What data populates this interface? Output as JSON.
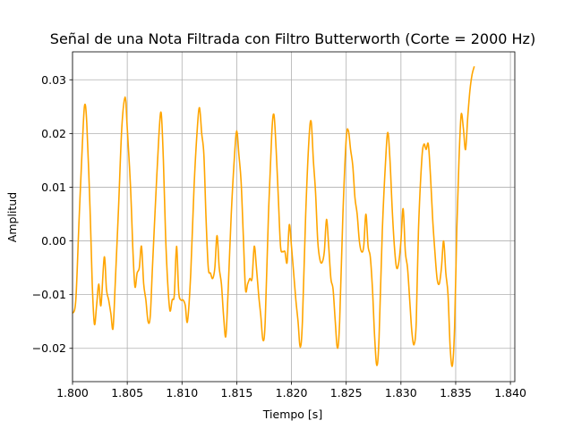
{
  "chart_data": {
    "type": "line",
    "title": "Señal de una Nota Filtrada con Filtro Butterworth (Corte = 2000 Hz)",
    "xlabel": "Tiempo [s]",
    "ylabel": "Amplitud",
    "xlim": [
      1.8,
      1.8404
    ],
    "ylim": [
      -0.0262,
      0.0352
    ],
    "grid": true,
    "x_ticks": [
      {
        "value": 1.8,
        "label": "1.800"
      },
      {
        "value": 1.805,
        "label": "1.805"
      },
      {
        "value": 1.81,
        "label": "1.810"
      },
      {
        "value": 1.815,
        "label": "1.815"
      },
      {
        "value": 1.82,
        "label": "1.820"
      },
      {
        "value": 1.825,
        "label": "1.825"
      },
      {
        "value": 1.83,
        "label": "1.830"
      },
      {
        "value": 1.835,
        "label": "1.835"
      },
      {
        "value": 1.84,
        "label": "1.840"
      }
    ],
    "y_ticks": [
      {
        "value": -0.02,
        "label": "−0.02"
      },
      {
        "value": -0.01,
        "label": "−0.01"
      },
      {
        "value": 0.0,
        "label": "0.00"
      },
      {
        "value": 0.01,
        "label": "0.01"
      },
      {
        "value": 0.02,
        "label": "0.02"
      },
      {
        "value": 0.03,
        "label": "0.03"
      }
    ],
    "series": [
      {
        "color": "#FFA500",
        "points": [
          [
            1.8,
            -0.0135
          ],
          [
            1.8003,
            -0.011
          ],
          [
            1.8006,
            0.004
          ],
          [
            1.8009,
            0.018
          ],
          [
            1.8011,
            0.0252
          ],
          [
            1.8013,
            0.022
          ],
          [
            1.8016,
            0.006
          ],
          [
            1.8018,
            -0.008
          ],
          [
            1.802,
            -0.0155
          ],
          [
            1.8022,
            -0.012
          ],
          [
            1.8024,
            -0.008
          ],
          [
            1.8026,
            -0.012
          ],
          [
            1.8029,
            -0.003
          ],
          [
            1.8031,
            -0.009
          ],
          [
            1.8033,
            -0.011
          ],
          [
            1.8035,
            -0.0135
          ],
          [
            1.8037,
            -0.0163
          ],
          [
            1.8039,
            -0.008
          ],
          [
            1.8042,
            0.006
          ],
          [
            1.8045,
            0.021
          ],
          [
            1.8048,
            0.0268
          ],
          [
            1.805,
            0.021
          ],
          [
            1.8053,
            0.01
          ],
          [
            1.8055,
            -0.001
          ],
          [
            1.8057,
            -0.0085
          ],
          [
            1.8059,
            -0.006
          ],
          [
            1.8061,
            -0.005
          ],
          [
            1.8063,
            -0.001
          ],
          [
            1.8065,
            -0.008
          ],
          [
            1.8067,
            -0.011
          ],
          [
            1.8069,
            -0.015
          ],
          [
            1.8071,
            -0.014
          ],
          [
            1.8073,
            -0.005
          ],
          [
            1.8076,
            0.008
          ],
          [
            1.8079,
            0.02
          ],
          [
            1.8081,
            0.0238
          ],
          [
            1.8083,
            0.015
          ],
          [
            1.8085,
            0.001
          ],
          [
            1.8087,
            -0.008
          ],
          [
            1.8089,
            -0.013
          ],
          [
            1.8091,
            -0.011
          ],
          [
            1.8093,
            -0.01
          ],
          [
            1.8095,
            -0.001
          ],
          [
            1.8097,
            -0.0095
          ],
          [
            1.8099,
            -0.011
          ],
          [
            1.8101,
            -0.011
          ],
          [
            1.8103,
            -0.012
          ],
          [
            1.8105,
            -0.015
          ],
          [
            1.8108,
            -0.006
          ],
          [
            1.8111,
            0.01
          ],
          [
            1.8114,
            0.021
          ],
          [
            1.8116,
            0.0248
          ],
          [
            1.8118,
            0.02
          ],
          [
            1.812,
            0.016
          ],
          [
            1.8122,
            0.004
          ],
          [
            1.8124,
            -0.005
          ],
          [
            1.8126,
            -0.006
          ],
          [
            1.8128,
            -0.007
          ],
          [
            1.813,
            -0.005
          ],
          [
            1.8132,
            0.001
          ],
          [
            1.8134,
            -0.005
          ],
          [
            1.8136,
            -0.008
          ],
          [
            1.8138,
            -0.014
          ],
          [
            1.814,
            -0.0178
          ],
          [
            1.8142,
            -0.01
          ],
          [
            1.8145,
            0.005
          ],
          [
            1.8148,
            0.016
          ],
          [
            1.815,
            0.0205
          ],
          [
            1.8152,
            0.016
          ],
          [
            1.8154,
            0.011
          ],
          [
            1.8156,
            0.001
          ],
          [
            1.8158,
            -0.009
          ],
          [
            1.816,
            -0.008
          ],
          [
            1.8162,
            -0.007
          ],
          [
            1.8164,
            -0.007
          ],
          [
            1.8166,
            -0.001
          ],
          [
            1.8168,
            -0.005
          ],
          [
            1.817,
            -0.01
          ],
          [
            1.8172,
            -0.014
          ],
          [
            1.8174,
            -0.0185
          ],
          [
            1.8176,
            -0.015
          ],
          [
            1.8179,
            0.005
          ],
          [
            1.8182,
            0.02
          ],
          [
            1.8184,
            0.0235
          ],
          [
            1.8186,
            0.017
          ],
          [
            1.8188,
            0.008
          ],
          [
            1.819,
            -0.001
          ],
          [
            1.8192,
            -0.002
          ],
          [
            1.8194,
            -0.002
          ],
          [
            1.8196,
            -0.004
          ],
          [
            1.8198,
            0.003
          ],
          [
            1.82,
            -0.001
          ],
          [
            1.8202,
            -0.006
          ],
          [
            1.8204,
            -0.011
          ],
          [
            1.8206,
            -0.015
          ],
          [
            1.8208,
            -0.0198
          ],
          [
            1.821,
            -0.015
          ],
          [
            1.8213,
            0.005
          ],
          [
            1.8216,
            0.019
          ],
          [
            1.8218,
            0.0222
          ],
          [
            1.822,
            0.015
          ],
          [
            1.8222,
            0.009
          ],
          [
            1.8224,
            0.0
          ],
          [
            1.8226,
            -0.0035
          ],
          [
            1.8228,
            -0.004
          ],
          [
            1.823,
            -0.002
          ],
          [
            1.8232,
            0.004
          ],
          [
            1.8234,
            -0.001
          ],
          [
            1.8236,
            -0.007
          ],
          [
            1.8238,
            -0.009
          ],
          [
            1.824,
            -0.015
          ],
          [
            1.8242,
            -0.02
          ],
          [
            1.8244,
            -0.015
          ],
          [
            1.8247,
            0.005
          ],
          [
            1.825,
            0.019
          ],
          [
            1.8252,
            0.0205
          ],
          [
            1.8254,
            0.017
          ],
          [
            1.8256,
            0.014
          ],
          [
            1.8258,
            0.008
          ],
          [
            1.826,
            0.005
          ],
          [
            1.8262,
            0.0
          ],
          [
            1.8264,
            -0.002
          ],
          [
            1.8266,
            -0.001
          ],
          [
            1.8268,
            0.005
          ],
          [
            1.827,
            -0.001
          ],
          [
            1.8272,
            -0.003
          ],
          [
            1.8274,
            -0.009
          ],
          [
            1.8276,
            -0.018
          ],
          [
            1.8278,
            -0.0232
          ],
          [
            1.828,
            -0.018
          ],
          [
            1.8283,
            0.002
          ],
          [
            1.8286,
            0.015
          ],
          [
            1.8288,
            0.0202
          ],
          [
            1.829,
            0.015
          ],
          [
            1.8292,
            0.006
          ],
          [
            1.8294,
            -0.001
          ],
          [
            1.8296,
            -0.005
          ],
          [
            1.8298,
            -0.004
          ],
          [
            1.83,
            0.0
          ],
          [
            1.8302,
            0.006
          ],
          [
            1.8304,
            -0.002
          ],
          [
            1.8306,
            -0.005
          ],
          [
            1.8308,
            -0.011
          ],
          [
            1.831,
            -0.017
          ],
          [
            1.8312,
            -0.0193
          ],
          [
            1.8314,
            -0.015
          ],
          [
            1.8316,
            0.002
          ],
          [
            1.8319,
            0.015
          ],
          [
            1.8321,
            0.018
          ],
          [
            1.8323,
            0.017
          ],
          [
            1.8325,
            0.018
          ],
          [
            1.8327,
            0.012
          ],
          [
            1.8329,
            0.004
          ],
          [
            1.8331,
            -0.002
          ],
          [
            1.8333,
            -0.007
          ],
          [
            1.8335,
            -0.008
          ],
          [
            1.8337,
            -0.005
          ],
          [
            1.8339,
            0.0
          ],
          [
            1.8341,
            -0.006
          ],
          [
            1.8343,
            -0.01
          ],
          [
            1.8345,
            -0.02
          ],
          [
            1.8347,
            -0.0232
          ],
          [
            1.8349,
            -0.016
          ],
          [
            1.8351,
            0.002
          ],
          [
            1.8353,
            0.015
          ],
          [
            1.8355,
            0.0235
          ],
          [
            1.8357,
            0.021
          ],
          [
            1.8359,
            0.017
          ],
          [
            1.8361,
            0.023
          ],
          [
            1.8363,
            0.028
          ],
          [
            1.8365,
            0.031
          ],
          [
            1.8367,
            0.0325
          ]
        ]
      }
    ]
  }
}
